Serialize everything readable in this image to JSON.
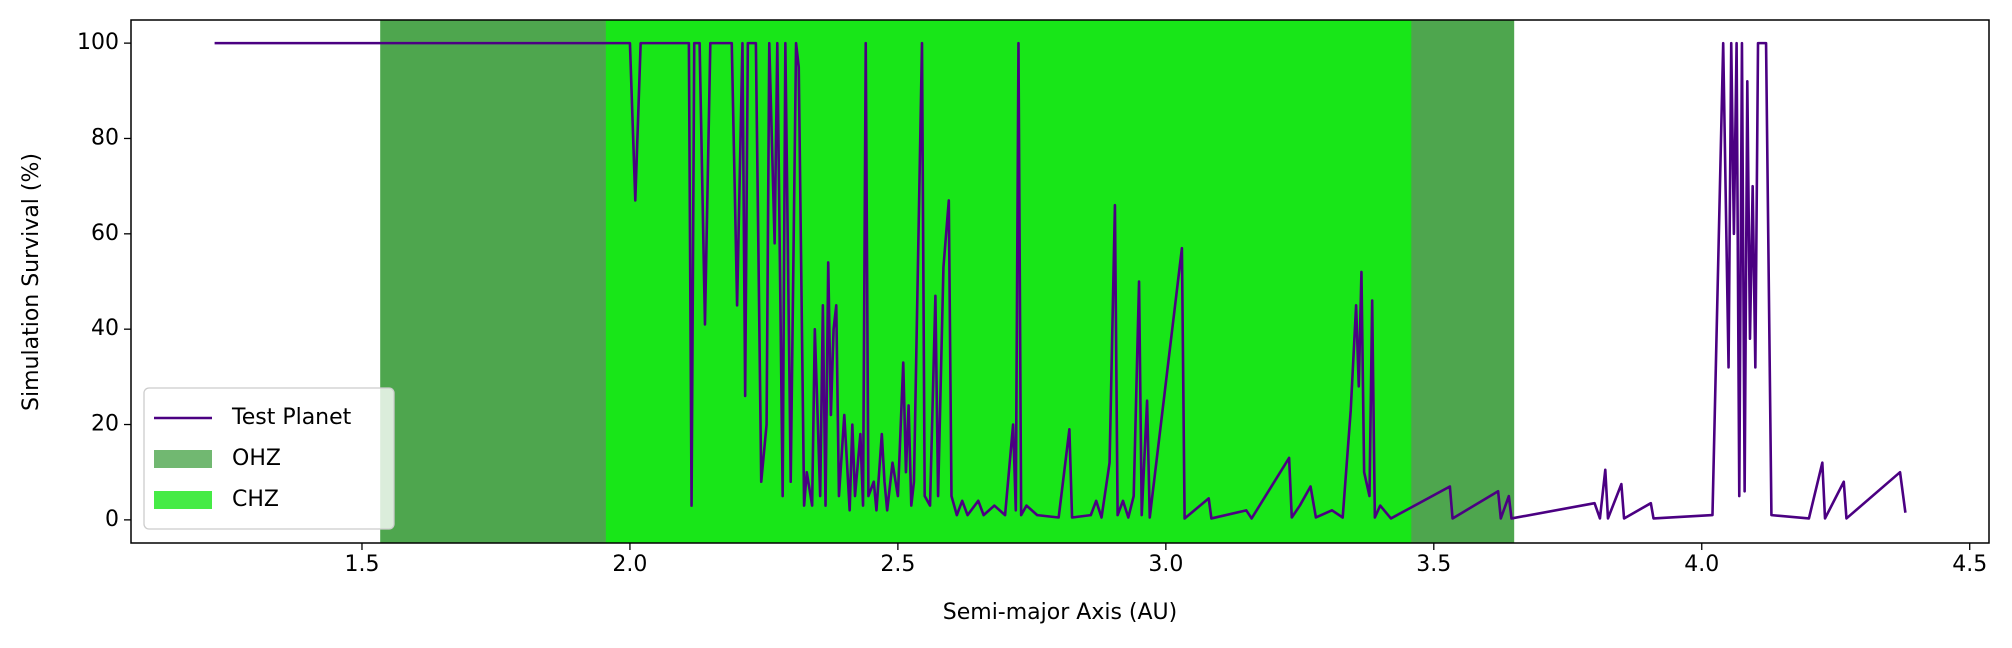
{
  "chart_data": {
    "type": "line",
    "xlabel": "Semi-major Axis (AU)",
    "ylabel": "Simulation Survival (%)",
    "xlim": [
      1.069,
      4.536
    ],
    "ylim": [
      -4.85,
      104.85
    ],
    "xticks": [
      1.5,
      {
        "value": 2,
        "label": "2.0"
      },
      2.5,
      {
        "value": 3,
        "label": "3.0"
      },
      3.5,
      {
        "value": 4,
        "label": "4.0"
      },
      4.5
    ],
    "yticks": [
      0,
      20,
      40,
      60,
      80,
      100
    ],
    "grid": false,
    "legend": "lower left",
    "bands": [
      {
        "name": "OHZ",
        "color": "#4ea64e",
        "range": [
          1.534,
          3.65
        ]
      },
      {
        "name": "CHZ",
        "color": "#18e618",
        "range": [
          1.955,
          3.458
        ]
      }
    ],
    "x": [
      1.225,
      2.0,
      2.01,
      2.02,
      2.11,
      2.115,
      2.12,
      2.13,
      2.14,
      2.15,
      2.19,
      2.2,
      2.21,
      2.215,
      2.22,
      2.235,
      2.245,
      2.255,
      2.26,
      2.27,
      2.275,
      2.285,
      2.29,
      2.3,
      2.31,
      2.315,
      2.325,
      2.33,
      2.34,
      2.345,
      2.355,
      2.36,
      2.365,
      2.37,
      2.375,
      2.38,
      2.385,
      2.39,
      2.4,
      2.41,
      2.415,
      2.42,
      2.43,
      2.435,
      2.44,
      2.445,
      2.455,
      2.46,
      2.47,
      2.475,
      2.48,
      2.49,
      2.5,
      2.51,
      2.515,
      2.52,
      2.525,
      2.53,
      2.545,
      2.55,
      2.56,
      2.57,
      2.575,
      2.585,
      2.595,
      2.6,
      2.61,
      2.62,
      2.63,
      2.65,
      2.66,
      2.68,
      2.7,
      2.715,
      2.72,
      2.725,
      2.73,
      2.74,
      2.76,
      2.8,
      2.82,
      2.825,
      2.86,
      2.87,
      2.88,
      2.895,
      2.905,
      2.91,
      2.92,
      2.93,
      2.94,
      2.95,
      2.955,
      2.965,
      2.97,
      3.03,
      3.035,
      3.08,
      3.085,
      3.15,
      3.16,
      3.23,
      3.235,
      3.25,
      3.27,
      3.28,
      3.31,
      3.33,
      3.345,
      3.355,
      3.36,
      3.365,
      3.37,
      3.38,
      3.385,
      3.39,
      3.4,
      3.42,
      3.53,
      3.535,
      3.62,
      3.625,
      3.64,
      3.645,
      3.8,
      3.81,
      3.82,
      3.825,
      3.85,
      3.855,
      3.905,
      3.91,
      4.02,
      4.04,
      4.05,
      4.055,
      4.06,
      4.065,
      4.07,
      4.075,
      4.08,
      4.085,
      4.09,
      4.095,
      4.1,
      4.105,
      4.12,
      4.13,
      4.2,
      4.225,
      4.23,
      4.265,
      4.27,
      4.37,
      4.38
    ],
    "series": [
      {
        "name": "Test Planet",
        "color": "#4b0082",
        "values": [
          100,
          100,
          67,
          100,
          100,
          3,
          100,
          100,
          41,
          100,
          100,
          45,
          100,
          26,
          100,
          100,
          8,
          20,
          100,
          58,
          100,
          5,
          100,
          8,
          100,
          95,
          3,
          10,
          3,
          40,
          5,
          45,
          3,
          54,
          22,
          40,
          45,
          5,
          22,
          2,
          20,
          5,
          18,
          3,
          100,
          5,
          8,
          2,
          18,
          8,
          2,
          12,
          5,
          33,
          10,
          24,
          3,
          8,
          100,
          5,
          3,
          47,
          5,
          53,
          67,
          5,
          1,
          4,
          1,
          4,
          1,
          3,
          1,
          20,
          2,
          100,
          1,
          3,
          1,
          0.5,
          19,
          0.5,
          1,
          4,
          0.5,
          12,
          66,
          1,
          4,
          0.5,
          5,
          50,
          1,
          25,
          0.5,
          57,
          0.3,
          4.5,
          0.3,
          2,
          0.3,
          13,
          0.5,
          3,
          7,
          0.5,
          2,
          0.5,
          23,
          45,
          28,
          52,
          10,
          5,
          46,
          0.5,
          3,
          0.3,
          7,
          0.3,
          6,
          0.3,
          5,
          0.3,
          3.5,
          0.3,
          10.5,
          0.3,
          7.5,
          0.3,
          3.5,
          0.3,
          1,
          100,
          32,
          100,
          60,
          100,
          5,
          100,
          6,
          92,
          38,
          70,
          32,
          100,
          100,
          1,
          0.3,
          12,
          0.3,
          8,
          0.3,
          10,
          1.5
        ]
      }
    ]
  }
}
